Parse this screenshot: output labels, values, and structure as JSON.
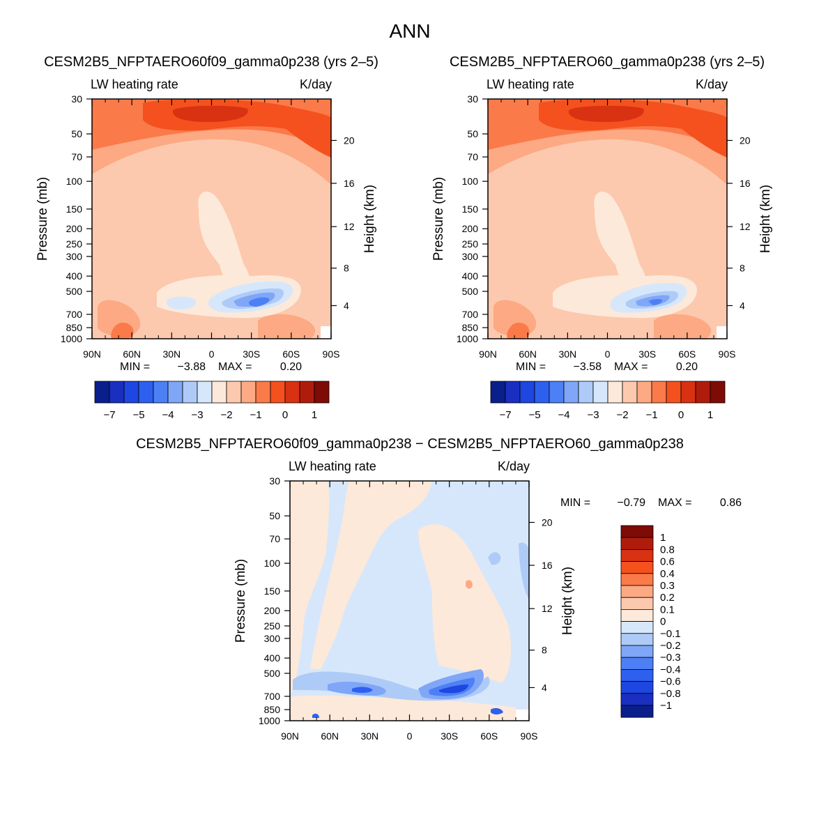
{
  "page": {
    "title": "ANN"
  },
  "colors": {
    "neg": [
      "#0a1f8c",
      "#1a2fc0",
      "#1e46e0",
      "#2e60f0",
      "#4d80f5",
      "#7fa6f7",
      "#aecbf8",
      "#d7e7fb"
    ],
    "pos": [
      "#fde9d9",
      "#fcc9ae",
      "#fca984",
      "#fb7a4a",
      "#f4511e",
      "#d83212",
      "#b01c0c",
      "#7e0b06"
    ]
  },
  "chart_data": [
    {
      "id": "panel1",
      "type": "heatmap",
      "title": "CESM2B5_NFPTAERO60f09_gamma0p238 (yrs 2–5)",
      "variable": "LW heating rate",
      "units": "K/day",
      "ylabel": "Pressure (mb)",
      "ylabel_right": "Height (km)",
      "pressure_ticks": [
        "30",
        "50",
        "70",
        "100",
        "150",
        "200",
        "250",
        "300",
        "400",
        "500",
        "700",
        "850",
        "1000"
      ],
      "height_ticks": [
        "20",
        "16",
        "12",
        "8",
        "4"
      ],
      "lat_ticks": [
        "90N",
        "60N",
        "30N",
        "0",
        "30S",
        "60S",
        "90S"
      ],
      "min_label": "MIN =",
      "min_value": "−3.88",
      "max_label": "MAX =",
      "max_value": "0.20",
      "colorbar_labels": [
        "−7",
        "−5",
        "−4",
        "−3",
        "−2",
        "−1",
        "0",
        "1"
      ]
    },
    {
      "id": "panel2",
      "type": "heatmap",
      "title": "CESM2B5_NFPTAERO60_gamma0p238 (yrs 2–5)",
      "variable": "LW heating rate",
      "units": "K/day",
      "ylabel": "Pressure (mb)",
      "ylabel_right": "Height (km)",
      "pressure_ticks": [
        "30",
        "50",
        "70",
        "100",
        "150",
        "200",
        "250",
        "300",
        "400",
        "500",
        "700",
        "850",
        "1000"
      ],
      "height_ticks": [
        "20",
        "16",
        "12",
        "8",
        "4"
      ],
      "lat_ticks": [
        "90N",
        "60N",
        "30N",
        "0",
        "30S",
        "60S",
        "90S"
      ],
      "min_label": "MIN =",
      "min_value": "−3.58",
      "max_label": "MAX =",
      "max_value": "0.20",
      "colorbar_labels": [
        "−7",
        "−5",
        "−4",
        "−3",
        "−2",
        "−1",
        "0",
        "1"
      ]
    },
    {
      "id": "panel3",
      "type": "heatmap",
      "title": "CESM2B5_NFPTAERO60f09_gamma0p238 − CESM2B5_NFPTAERO60_gamma0p238",
      "variable": "LW heating rate",
      "units": "K/day",
      "ylabel": "Pressure (mb)",
      "ylabel_right": "Height (km)",
      "pressure_ticks": [
        "30",
        "50",
        "70",
        "100",
        "150",
        "200",
        "250",
        "300",
        "400",
        "500",
        "700",
        "850",
        "1000"
      ],
      "height_ticks": [
        "20",
        "16",
        "12",
        "8",
        "4"
      ],
      "lat_ticks": [
        "90N",
        "60N",
        "30N",
        "0",
        "30S",
        "60S",
        "90S"
      ],
      "min_label": "MIN =",
      "min_value": "−0.79",
      "max_label": "MAX =",
      "max_value": "0.86",
      "colorbar_labels": [
        "1",
        "0.8",
        "0.6",
        "0.4",
        "0.3",
        "0.2",
        "0.1",
        "0",
        "−0.1",
        "−0.2",
        "−0.3",
        "−0.4",
        "−0.6",
        "−0.8",
        "−1"
      ]
    }
  ]
}
